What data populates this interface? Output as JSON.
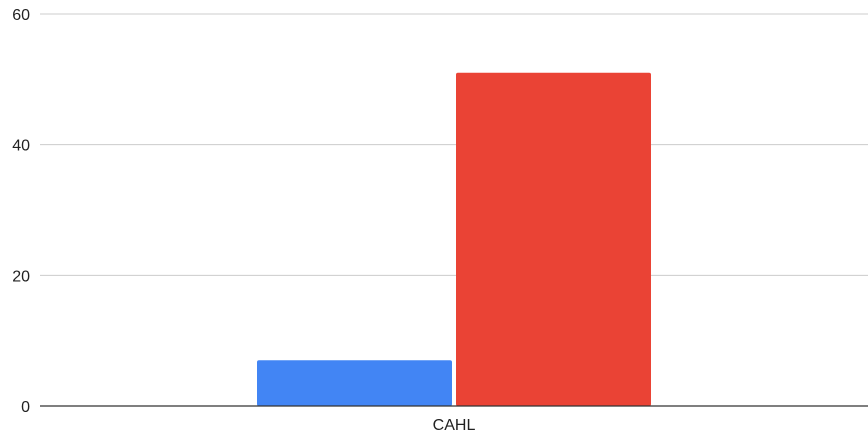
{
  "chart_data": {
    "type": "bar",
    "categories": [
      "CAHL"
    ],
    "series": [
      {
        "values": [
          7
        ],
        "color": "#4285F4"
      },
      {
        "values": [
          51
        ],
        "color": "#EA4335"
      }
    ],
    "title": "",
    "xlabel": "",
    "ylabel": "",
    "ylim": [
      0,
      60
    ],
    "yticks": [
      0,
      20,
      40,
      60
    ],
    "grid": true,
    "legend": "none"
  }
}
